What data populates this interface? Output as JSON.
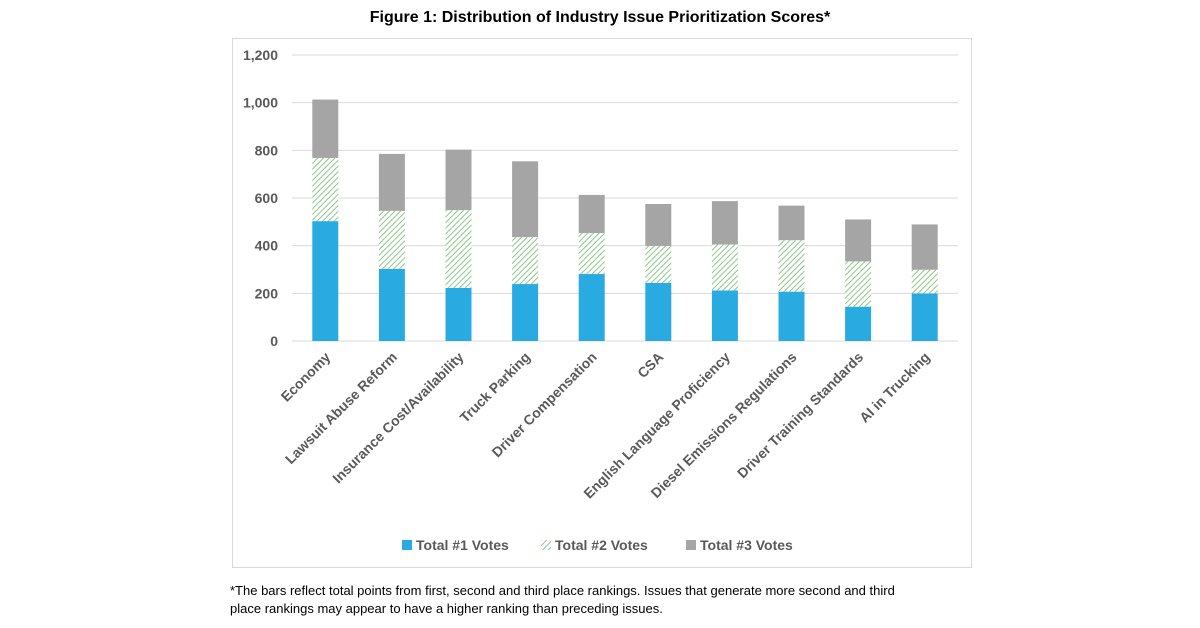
{
  "chart_data": {
    "type": "bar",
    "stacked": true,
    "title": "Figure 1: Distribution of Industry Issue Prioritization Scores*",
    "categories": [
      "Economy",
      "Lawsuit Abuse Reform",
      "Insurance Cost/Availability",
      "Truck Parking",
      "Driver Compensation",
      "CSA",
      "English Language Proficiency",
      "Diesel Emissions Regulations",
      "Driver Training Standards",
      "AI in Trucking"
    ],
    "series": [
      {
        "name": "Total #1 Votes",
        "color": "#29abe2",
        "pattern": "solid",
        "values": [
          503,
          303,
          223,
          239,
          281,
          244,
          212,
          207,
          144,
          200
        ]
      },
      {
        "name": "Total #2 Votes",
        "color": "#8cc98a",
        "pattern": "diagonal-hatch",
        "values": [
          265,
          243,
          326,
          197,
          172,
          155,
          193,
          216,
          190,
          99
        ]
      },
      {
        "name": "Total #3 Votes",
        "color": "#a5a5a5",
        "pattern": "solid",
        "values": [
          245,
          239,
          254,
          318,
          160,
          176,
          182,
          145,
          176,
          190
        ]
      }
    ],
    "ylim": [
      0,
      1200
    ],
    "yticks": [
      "0",
      "200",
      "400",
      "600",
      "800",
      "1,000",
      "1,200"
    ],
    "grid": true,
    "legend": "bottom",
    "xlabel": "",
    "ylabel": ""
  },
  "footnote": {
    "line1": "*The bars reflect total points from first, second and third place rankings.  Issues that generate more second and third",
    "line2": "place rankings may appear to have a higher ranking than preceding issues."
  }
}
